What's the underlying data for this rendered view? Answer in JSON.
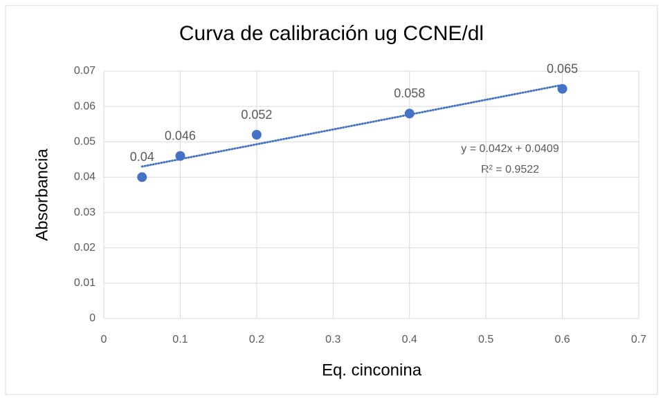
{
  "chart_data": {
    "type": "scatter",
    "title": "Curva de calibración ug CCNE/dl",
    "x_label": "Eq. cinconina",
    "y_label": "Absorbancia",
    "x": [
      0.05,
      0.1,
      0.2,
      0.4,
      0.6
    ],
    "series": [
      {
        "name": "Absorbancia",
        "color": "#4472c4",
        "values": [
          0.04,
          0.046,
          0.052,
          0.058,
          0.065
        ]
      }
    ],
    "xlim": [
      0,
      0.7
    ],
    "xticks": [
      0,
      0.1,
      0.2,
      0.3,
      0.4,
      0.5,
      0.6,
      0.7
    ],
    "ylim": [
      0,
      0.07
    ],
    "yticks": [
      0,
      0.01,
      0.02,
      0.03,
      0.04,
      0.05,
      0.06,
      0.07
    ],
    "grid": true,
    "trendline": {
      "slope": 0.042,
      "intercept": 0.0409,
      "equation": "y = 0.042x + 0.0409",
      "r2_label": "R² = 0.9522"
    }
  }
}
